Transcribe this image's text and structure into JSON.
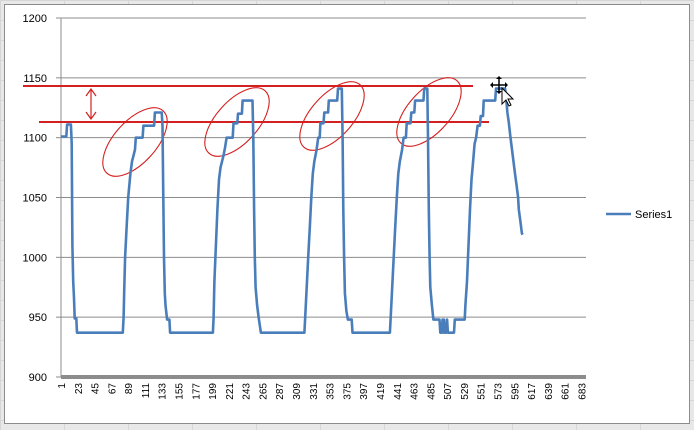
{
  "colors": {
    "series": "#4a7ebb",
    "annotation": "#d42020",
    "gridline": "#8c8c8c",
    "axis": "#8c8c8c"
  },
  "cursor_icon": "move-cursor-icon",
  "chart_data": {
    "type": "line",
    "title": "",
    "xlabel": "",
    "ylabel": "",
    "ylim": [
      900,
      1200
    ],
    "yticks": [
      900,
      950,
      1000,
      1050,
      1100,
      1150,
      1200
    ],
    "xticks": [
      1,
      23,
      45,
      67,
      89,
      111,
      133,
      155,
      177,
      199,
      221,
      243,
      265,
      287,
      309,
      331,
      353,
      375,
      397,
      419,
      441,
      463,
      485,
      507,
      529,
      551,
      573,
      595,
      617,
      639,
      661,
      683
    ],
    "xlim": [
      1,
      689
    ],
    "grid": true,
    "legend": "right",
    "series": [
      {
        "name": "Series1",
        "points": [
          [
            1,
            1101
          ],
          [
            8,
            1101
          ],
          [
            9,
            1111
          ],
          [
            14,
            1111
          ],
          [
            15,
            1095
          ],
          [
            16,
            1010
          ],
          [
            17,
            980
          ],
          [
            18,
            966
          ],
          [
            19,
            949
          ],
          [
            21,
            949
          ],
          [
            22,
            937
          ],
          [
            82,
            937
          ],
          [
            83,
            950
          ],
          [
            84,
            975
          ],
          [
            85,
            1000
          ],
          [
            87,
            1025
          ],
          [
            89,
            1050
          ],
          [
            92,
            1070
          ],
          [
            94,
            1080
          ],
          [
            98,
            1090
          ],
          [
            99,
            1100
          ],
          [
            108,
            1100
          ],
          [
            109,
            1110
          ],
          [
            123,
            1110
          ],
          [
            124,
            1121
          ],
          [
            133,
            1121
          ],
          [
            134,
            1110
          ],
          [
            135,
            1050
          ],
          [
            136,
            1000
          ],
          [
            137,
            970
          ],
          [
            138,
            960
          ],
          [
            140,
            948
          ],
          [
            143,
            948
          ],
          [
            144,
            937
          ],
          [
            200,
            937
          ],
          [
            201,
            950
          ],
          [
            202,
            980
          ],
          [
            204,
            1010
          ],
          [
            206,
            1040
          ],
          [
            208,
            1065
          ],
          [
            210,
            1075
          ],
          [
            214,
            1085
          ],
          [
            216,
            1092
          ],
          [
            218,
            1100
          ],
          [
            226,
            1100
          ],
          [
            227,
            1112
          ],
          [
            232,
            1112
          ],
          [
            233,
            1120
          ],
          [
            238,
            1120
          ],
          [
            239,
            1131
          ],
          [
            252,
            1131
          ],
          [
            253,
            1100
          ],
          [
            254,
            1040
          ],
          [
            255,
            1000
          ],
          [
            256,
            975
          ],
          [
            258,
            960
          ],
          [
            260,
            950
          ],
          [
            263,
            937
          ],
          [
            320,
            937
          ],
          [
            321,
            950
          ],
          [
            323,
            975
          ],
          [
            325,
            1000
          ],
          [
            327,
            1025
          ],
          [
            329,
            1050
          ],
          [
            331,
            1070
          ],
          [
            333,
            1080
          ],
          [
            336,
            1090
          ],
          [
            338,
            1100
          ],
          [
            340,
            1100
          ],
          [
            341,
            1112
          ],
          [
            345,
            1112
          ],
          [
            346,
            1121
          ],
          [
            351,
            1121
          ],
          [
            352,
            1131
          ],
          [
            363,
            1131
          ],
          [
            364,
            1141
          ],
          [
            369,
            1141
          ],
          [
            370,
            1100
          ],
          [
            371,
            1040
          ],
          [
            372,
            1000
          ],
          [
            373,
            970
          ],
          [
            375,
            955
          ],
          [
            377,
            948
          ],
          [
            382,
            948
          ],
          [
            383,
            937
          ],
          [
            432,
            937
          ],
          [
            433,
            950
          ],
          [
            435,
            975
          ],
          [
            437,
            1000
          ],
          [
            439,
            1025
          ],
          [
            441,
            1050
          ],
          [
            443,
            1070
          ],
          [
            445,
            1080
          ],
          [
            448,
            1090
          ],
          [
            450,
            1100
          ],
          [
            453,
            1100
          ],
          [
            454,
            1112
          ],
          [
            459,
            1112
          ],
          [
            460,
            1121
          ],
          [
            464,
            1121
          ],
          [
            465,
            1131
          ],
          [
            476,
            1131
          ],
          [
            477,
            1141
          ],
          [
            481,
            1141
          ],
          [
            482,
            1100
          ],
          [
            483,
            1040
          ],
          [
            484,
            1000
          ],
          [
            485,
            975
          ],
          [
            487,
            960
          ],
          [
            489,
            948
          ],
          [
            497,
            948
          ],
          [
            498,
            937
          ],
          [
            500,
            937
          ],
          [
            501,
            948
          ],
          [
            502,
            937
          ],
          [
            503,
            948
          ],
          [
            504,
            937
          ],
          [
            506,
            937
          ],
          [
            507,
            948
          ],
          [
            508,
            937
          ],
          [
            516,
            937
          ],
          [
            517,
            948
          ],
          [
            530,
            948
          ],
          [
            531,
            960
          ],
          [
            533,
            980
          ],
          [
            535,
            1010
          ],
          [
            537,
            1040
          ],
          [
            539,
            1065
          ],
          [
            541,
            1080
          ],
          [
            543,
            1095
          ],
          [
            545,
            1100
          ],
          [
            547,
            1110
          ],
          [
            550,
            1110
          ],
          [
            551,
            1118
          ],
          [
            554,
            1118
          ],
          [
            555,
            1131
          ],
          [
            570,
            1131
          ],
          [
            571,
            1141
          ],
          [
            583,
            1141
          ],
          [
            584,
            1135
          ],
          [
            586,
            1121
          ],
          [
            588,
            1112
          ],
          [
            590,
            1100
          ],
          [
            592,
            1090
          ],
          [
            594,
            1080
          ],
          [
            596,
            1070
          ],
          [
            598,
            1060
          ],
          [
            600,
            1050
          ],
          [
            601,
            1040
          ],
          [
            603,
            1030
          ],
          [
            605,
            1020
          ],
          [
            606,
            1019
          ]
        ]
      }
    ]
  }
}
